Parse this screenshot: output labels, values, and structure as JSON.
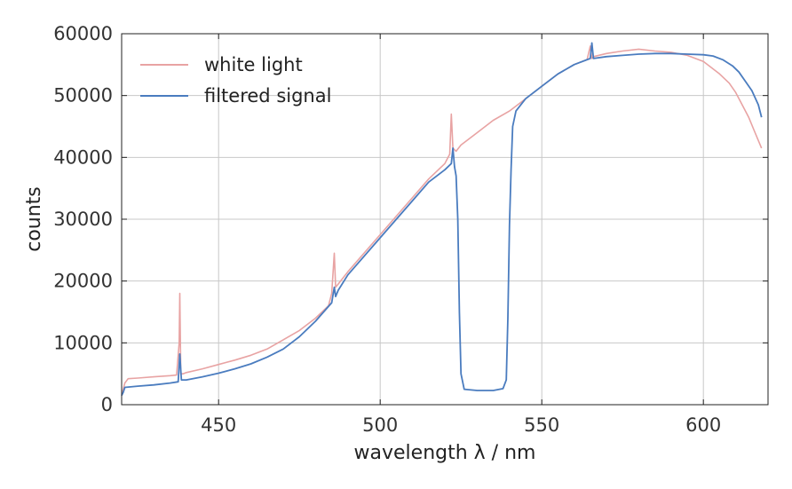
{
  "chart_data": {
    "type": "line",
    "title": "",
    "xlabel": "wavelength λ / nm",
    "ylabel": "counts",
    "xlim": [
      420,
      620
    ],
    "ylim": [
      0,
      60000
    ],
    "xticks": [
      450,
      500,
      550,
      600
    ],
    "yticks": [
      0,
      10000,
      20000,
      30000,
      40000,
      50000,
      60000
    ],
    "grid": true,
    "legend": "top-left",
    "series": [
      {
        "name": "white light",
        "color": "#e8a3a3",
        "x": [
          420,
          421,
          422,
          425,
          430,
          435,
          437,
          437.8,
          438,
          438.3,
          439,
          440,
          445,
          450,
          455,
          460,
          465,
          470,
          475,
          480,
          484,
          485,
          485.8,
          486.2,
          487,
          490,
          495,
          500,
          505,
          510,
          515,
          520,
          521.5,
          522,
          522.5,
          523.5,
          525,
          530,
          535,
          540,
          545,
          550,
          555,
          560,
          564,
          565,
          565.5,
          566,
          570,
          575,
          580,
          585,
          590,
          595,
          600,
          605,
          608,
          610,
          612,
          614,
          616,
          618
        ],
        "y": [
          1500,
          3500,
          4200,
          4300,
          4500,
          4700,
          4800,
          10000,
          18000,
          5000,
          5000,
          5200,
          5800,
          6500,
          7200,
          8000,
          9000,
          10500,
          12000,
          14000,
          16000,
          18000,
          24500,
          19000,
          19500,
          21500,
          24500,
          27500,
          30500,
          33500,
          36500,
          39000,
          40500,
          47000,
          41500,
          41000,
          42000,
          44000,
          46000,
          47500,
          49500,
          51500,
          53500,
          55000,
          55800,
          58000,
          56000,
          56300,
          56800,
          57200,
          57500,
          57200,
          57000,
          56500,
          55500,
          53500,
          52000,
          50500,
          48500,
          46500,
          44000,
          41500
        ]
      },
      {
        "name": "filtered signal",
        "color": "#4a7cbf",
        "x": [
          420,
          420.5,
          421,
          425,
          430,
          435,
          437.5,
          438,
          438.5,
          440,
          445,
          450,
          455,
          460,
          465,
          470,
          475,
          480,
          485,
          485.8,
          486.2,
          487,
          490,
          495,
          500,
          505,
          510,
          515,
          520,
          522,
          522.5,
          523,
          523.5,
          524,
          524.5,
          525,
          526,
          530,
          535,
          538,
          539,
          539.5,
          540,
          540.5,
          541,
          542,
          545,
          550,
          555,
          560,
          565,
          565.5,
          566,
          570,
          575,
          580,
          585,
          590,
          595,
          600,
          603,
          606,
          609,
          611,
          613,
          615,
          617,
          618
        ],
        "y": [
          1500,
          2000,
          2800,
          3000,
          3200,
          3500,
          3700,
          8200,
          4000,
          4000,
          4500,
          5100,
          5800,
          6600,
          7700,
          9000,
          11000,
          13500,
          16500,
          19000,
          17500,
          18500,
          21000,
          24000,
          27000,
          30000,
          33000,
          36000,
          38000,
          39000,
          41500,
          38500,
          37000,
          30000,
          15000,
          5000,
          2500,
          2300,
          2300,
          2600,
          4000,
          14000,
          29000,
          38000,
          45000,
          47500,
          49500,
          51500,
          53500,
          55000,
          56000,
          58500,
          56000,
          56300,
          56500,
          56700,
          56800,
          56800,
          56700,
          56600,
          56400,
          55800,
          54800,
          53800,
          52300,
          50800,
          48500,
          46500
        ]
      }
    ]
  }
}
